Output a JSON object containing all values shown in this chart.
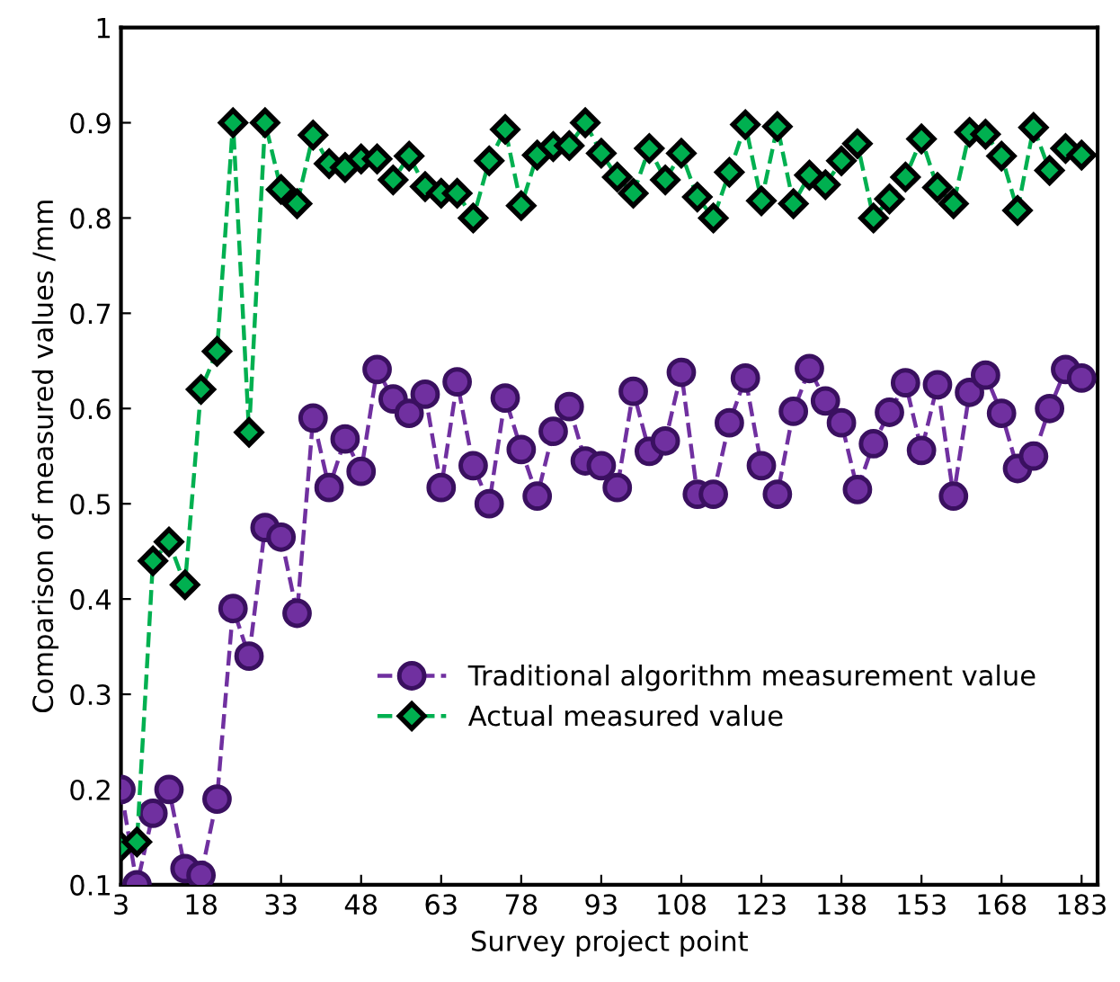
{
  "chart_data": {
    "type": "line",
    "xlabel": "Survey project point",
    "ylabel": "Comparison of measured values /mm",
    "x": [
      3,
      6,
      9,
      12,
      15,
      18,
      21,
      24,
      27,
      30,
      33,
      36,
      39,
      42,
      45,
      48,
      51,
      54,
      57,
      60,
      63,
      66,
      69,
      72,
      75,
      78,
      81,
      84,
      87,
      90,
      93,
      96,
      99,
      102,
      105,
      108,
      111,
      114,
      117,
      120,
      123,
      126,
      129,
      132,
      135,
      138,
      141,
      144,
      147,
      150,
      153,
      156,
      159,
      162,
      165,
      168,
      171,
      174,
      177,
      180,
      183
    ],
    "series": [
      {
        "name": "Traditional algorithm measurement value",
        "color": "#7030a0",
        "marker": "circle",
        "values": [
          0.2,
          0.1,
          0.175,
          0.2,
          0.117,
          0.11,
          0.19,
          0.39,
          0.34,
          0.475,
          0.465,
          0.385,
          0.59,
          0.517,
          0.568,
          0.534,
          0.641,
          0.61,
          0.595,
          0.615,
          0.517,
          0.628,
          0.54,
          0.5,
          0.611,
          0.557,
          0.508,
          0.576,
          0.602,
          0.545,
          0.54,
          0.517,
          0.618,
          0.555,
          0.566,
          0.638,
          0.51,
          0.51,
          0.585,
          0.632,
          0.54,
          0.51,
          0.597,
          0.642,
          0.608,
          0.585,
          0.515,
          0.563,
          0.596,
          0.627,
          0.556,
          0.625,
          0.508,
          0.617,
          0.635,
          0.595,
          0.537,
          0.55,
          0.6,
          0.641,
          0.632
        ]
      },
      {
        "name": "Actual measured value",
        "color": "#00b050",
        "marker": "diamond",
        "values": [
          0.14,
          0.145,
          0.44,
          0.46,
          0.415,
          0.62,
          0.66,
          0.9,
          0.575,
          0.9,
          0.83,
          0.815,
          0.887,
          0.857,
          0.853,
          0.862,
          0.862,
          0.84,
          0.865,
          0.833,
          0.826,
          0.826,
          0.8,
          0.86,
          0.893,
          0.813,
          0.866,
          0.875,
          0.876,
          0.9,
          0.868,
          0.843,
          0.826,
          0.873,
          0.84,
          0.868,
          0.822,
          0.8,
          0.848,
          0.898,
          0.818,
          0.896,
          0.815,
          0.845,
          0.835,
          0.86,
          0.878,
          0.8,
          0.82,
          0.843,
          0.883,
          0.832,
          0.815,
          0.89,
          0.888,
          0.865,
          0.808,
          0.895,
          0.85,
          0.873,
          0.866
        ]
      }
    ],
    "xlim": [
      3,
      186
    ],
    "xticks": [
      3,
      18,
      33,
      48,
      63,
      78,
      93,
      108,
      123,
      138,
      153,
      168,
      183
    ],
    "ylim": [
      0.1,
      1
    ],
    "yticks": [
      0.1,
      0.2,
      0.3,
      0.4,
      0.5,
      0.6,
      0.7,
      0.8,
      0.9,
      1
    ],
    "line_style": "dashed",
    "grid": false,
    "legend": "bottom"
  }
}
